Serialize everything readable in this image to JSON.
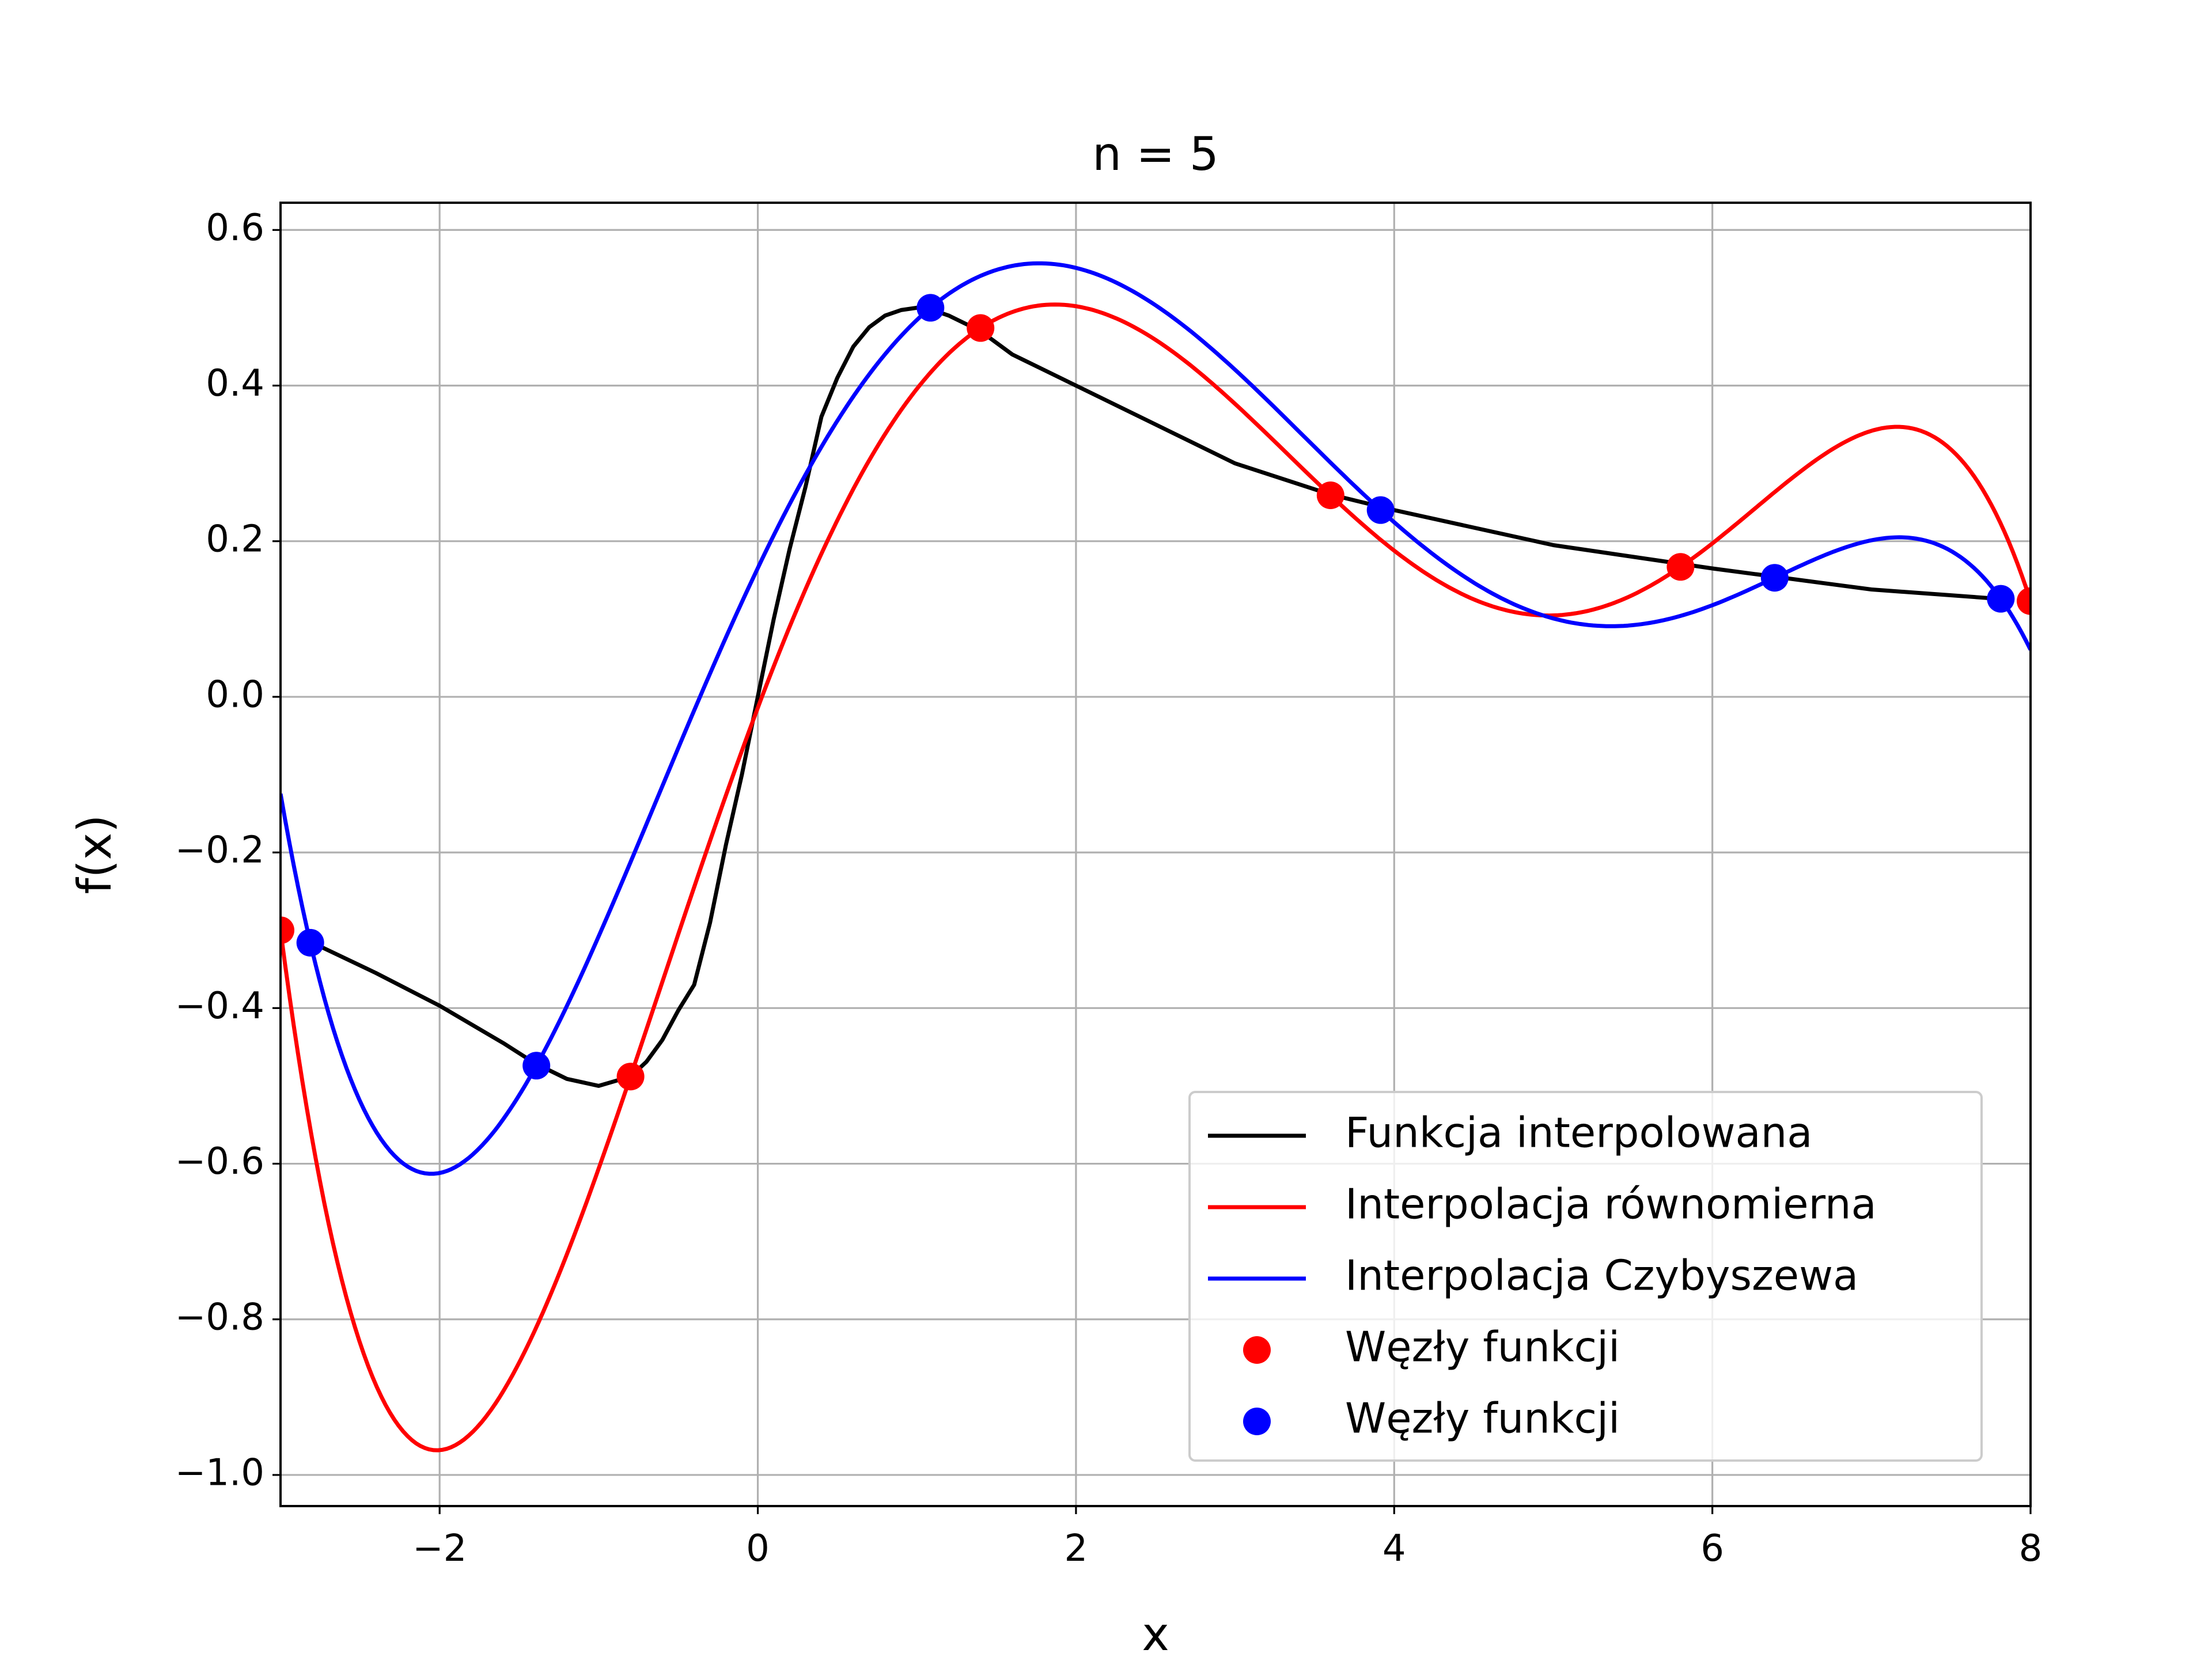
{
  "chart_data": {
    "type": "line",
    "title": "n = 5",
    "xlabel": "x",
    "ylabel": "f(x)",
    "xlim": [
      -3,
      8
    ],
    "ylim": [
      -1.04,
      0.635
    ],
    "grid": true,
    "legend_position": "bottom-right",
    "x_ticks": [
      -2,
      0,
      2,
      4,
      6,
      8
    ],
    "x_tick_labels": [
      "−2",
      "0",
      "2",
      "4",
      "6",
      "8"
    ],
    "y_ticks": [
      0.6,
      0.4,
      0.2,
      0.0,
      -0.2,
      -0.4,
      -0.6,
      -0.8,
      -1.0
    ],
    "y_tick_labels": [
      "0.6",
      "0.4",
      "0.2",
      "0.0",
      "−0.2",
      "−0.4",
      "−0.6",
      "−0.8",
      "−1.0"
    ],
    "series": [
      {
        "name": "Funkcja interpolowana",
        "kind": "line",
        "color": "#000000",
        "x": [
          -2.8,
          -2.4,
          -2.0,
          -1.6,
          -1.4,
          -1.2,
          -1.0,
          -0.8,
          -0.7,
          -0.6,
          -0.5,
          -0.4,
          -0.3,
          -0.2,
          -0.1,
          0.0,
          0.1,
          0.2,
          0.3,
          0.4,
          0.5,
          0.6,
          0.7,
          0.8,
          0.9,
          1.0,
          1.1,
          1.2,
          1.4,
          1.6,
          1.8,
          2.0,
          2.5,
          3.0,
          3.6,
          4.0,
          5.0,
          6.0,
          7.0,
          7.8
        ],
        "y": [
          -0.316,
          -0.355,
          -0.397,
          -0.445,
          -0.471,
          -0.491,
          -0.5,
          -0.488,
          -0.469,
          -0.441,
          -0.403,
          -0.37,
          -0.29,
          -0.19,
          -0.1,
          0.0,
          0.1,
          0.19,
          0.27,
          0.36,
          0.41,
          0.45,
          0.475,
          0.49,
          0.497,
          0.5,
          0.497,
          0.49,
          0.47,
          0.44,
          0.42,
          0.4,
          0.35,
          0.3,
          0.26,
          0.24,
          0.195,
          0.165,
          0.138,
          0.126
        ]
      },
      {
        "name": "Interpolacja równomierna",
        "kind": "line",
        "color": "#ff0000",
        "nodes_x": [
          -3.0,
          -0.8,
          1.4,
          3.6,
          5.8,
          8.0
        ],
        "nodes_y": [
          -0.3,
          -0.488,
          0.474,
          0.259,
          0.167,
          0.123
        ]
      },
      {
        "name": "Interpolacja Czybyszewa",
        "kind": "line",
        "color": "#0000ff",
        "nodes_x": [
          -2.8129,
          -1.3917,
          1.0853,
          3.9147,
          6.3917,
          7.8129
        ],
        "nodes_y": [
          -0.316,
          -0.474,
          0.5,
          0.24,
          0.153,
          0.126
        ]
      },
      {
        "name": "Węzły funkcji",
        "kind": "points",
        "color": "#ff0000",
        "x": [
          -3.0,
          -0.8,
          1.4,
          3.6,
          5.8,
          8.0
        ],
        "y": [
          -0.3,
          -0.488,
          0.474,
          0.259,
          0.167,
          0.123
        ]
      },
      {
        "name": "Węzły funkcji",
        "kind": "points",
        "color": "#0000ff",
        "x": [
          -2.8129,
          -1.3917,
          1.0853,
          3.9147,
          6.3917,
          7.8129
        ],
        "y": [
          -0.316,
          -0.474,
          0.5,
          0.24,
          0.153,
          0.126
        ]
      }
    ]
  }
}
